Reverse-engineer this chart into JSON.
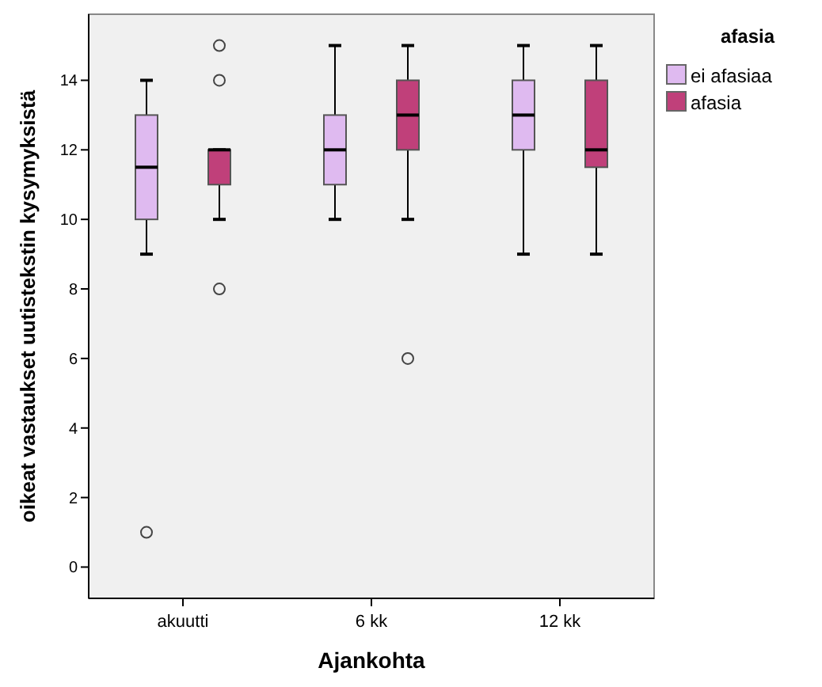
{
  "chart_data": {
    "type": "box",
    "xlabel": "Ajankohta",
    "ylabel": "oikeat vastaukset uutistekstin kysymyksistä",
    "legend_title": "afasia",
    "categories": [
      "akuutti",
      "6 kk",
      "12 kk"
    ],
    "ylim": [
      -0.9,
      15.9
    ],
    "yticks": [
      0,
      2,
      4,
      6,
      8,
      10,
      12,
      14
    ],
    "legend": "top right",
    "grid": false,
    "series": [
      {
        "name": "ei afasiaa",
        "color": "#dfbaf0",
        "boxes": [
          {
            "low": 9,
            "q1": 10,
            "median": 11.5,
            "q3": 13,
            "high": 14,
            "outliers": [
              1
            ]
          },
          {
            "low": 10,
            "q1": 11,
            "median": 12,
            "q3": 13,
            "high": 15
          },
          {
            "low": 9,
            "q1": 12,
            "median": 13,
            "q3": 14,
            "high": 15
          }
        ]
      },
      {
        "name": "afasia",
        "color": "#c0407a",
        "boxes": [
          {
            "low": 10,
            "q1": 11,
            "median": 12,
            "q3": 12,
            "high": 12,
            "outliers": [
              8,
              14,
              15
            ]
          },
          {
            "low": 10,
            "q1": 12,
            "median": 13,
            "q3": 14,
            "high": 15,
            "outliers": [
              6
            ]
          },
          {
            "low": 9,
            "q1": 11.5,
            "median": 12,
            "q3": 14,
            "high": 15
          }
        ]
      }
    ]
  }
}
